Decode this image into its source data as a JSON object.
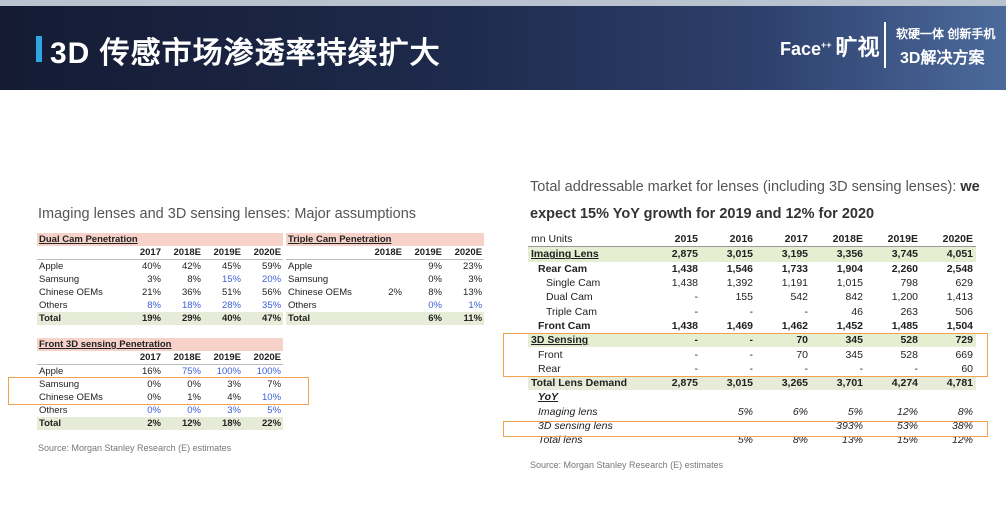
{
  "header": {
    "title": "3D 传感市场渗透率持续扩大",
    "brand_latin": "Face",
    "brand_sup": "++",
    "brand_cn": "旷视",
    "slogan_line1": "软硬一体 创新手机",
    "slogan_line2": "3D解决方案"
  },
  "left": {
    "heading": "Imaging lenses and 3D sensing lenses: Major assumptions",
    "dual_cam": {
      "title": "Dual Cam Penetration",
      "columns": [
        "2017",
        "2018E",
        "2019E",
        "2020E"
      ],
      "rows": [
        {
          "label": "Apple",
          "v": [
            "40%",
            "42%",
            "45%",
            "59%"
          ]
        },
        {
          "label": "Samsung",
          "v": [
            "3%",
            "8%",
            "15%",
            "20%"
          ]
        },
        {
          "label": "Chinese OEMs",
          "v": [
            "21%",
            "36%",
            "51%",
            "56%"
          ]
        },
        {
          "label": "Others",
          "v": [
            "8%",
            "18%",
            "28%",
            "35%"
          ]
        }
      ],
      "total": {
        "label": "Total",
        "v": [
          "19%",
          "29%",
          "40%",
          "47%"
        ]
      }
    },
    "triple_cam": {
      "title": "Triple Cam Penetration",
      "columns": [
        "2018E",
        "2019E",
        "2020E"
      ],
      "rows": [
        {
          "label": "Apple",
          "v": [
            "",
            "9%",
            "23%"
          ]
        },
        {
          "label": "Samsung",
          "v": [
            "",
            "0%",
            "3%"
          ]
        },
        {
          "label": "Chinese OEMs",
          "v": [
            "2%",
            "8%",
            "13%"
          ]
        },
        {
          "label": "Others",
          "v": [
            "",
            "0%",
            "1%"
          ]
        }
      ],
      "total": {
        "label": "Total",
        "v": [
          "",
          "6%",
          "11%"
        ]
      }
    },
    "front_3d": {
      "title": "Front 3D sensing Penetration",
      "columns": [
        "2017",
        "2018E",
        "2019E",
        "2020E"
      ],
      "rows": [
        {
          "label": "Apple",
          "v": [
            "16%",
            "75%",
            "100%",
            "100%"
          ]
        },
        {
          "label": "Samsung",
          "v": [
            "0%",
            "0%",
            "3%",
            "7%"
          ]
        },
        {
          "label": "Chinese OEMs",
          "v": [
            "0%",
            "1%",
            "4%",
            "10%"
          ]
        },
        {
          "label": "Others",
          "v": [
            "0%",
            "0%",
            "3%",
            "5%"
          ]
        }
      ],
      "total": {
        "label": "Total",
        "v": [
          "2%",
          "12%",
          "18%",
          "22%"
        ]
      }
    },
    "source": "Source: Morgan Stanley Research (E) estimates"
  },
  "right": {
    "heading_line1": "Total addressable market for lenses (including 3D sensing lenses):",
    "heading_line1_bold": "we",
    "heading_line2": "expect 15% YoY growth for 2019 and 12% for 2020",
    "units_label": "mn Units",
    "columns": [
      "2015",
      "2016",
      "2017",
      "2018E",
      "2019E",
      "2020E"
    ],
    "rows": [
      {
        "label": "Imaging Lens",
        "v": [
          "2,875",
          "3,015",
          "3,195",
          "3,356",
          "3,745",
          "4,051"
        ]
      },
      {
        "label": "Rear Cam",
        "v": [
          "1,438",
          "1,546",
          "1,733",
          "1,904",
          "2,260",
          "2,548"
        ]
      },
      {
        "label": "Single Cam",
        "v": [
          "1,438",
          "1,392",
          "1,191",
          "1,015",
          "798",
          "629"
        ]
      },
      {
        "label": "Dual Cam",
        "v": [
          "-",
          "155",
          "542",
          "842",
          "1,200",
          "1,413"
        ]
      },
      {
        "label": "Triple Cam",
        "v": [
          "-",
          "-",
          "-",
          "46",
          "263",
          "506"
        ]
      },
      {
        "label": "Front Cam",
        "v": [
          "1,438",
          "1,469",
          "1,462",
          "1,452",
          "1,485",
          "1,504"
        ]
      },
      {
        "label": "3D Sensing",
        "v": [
          "-",
          "-",
          "70",
          "345",
          "528",
          "729"
        ]
      },
      {
        "label": "Front",
        "v": [
          "-",
          "-",
          "70",
          "345",
          "528",
          "669"
        ]
      },
      {
        "label": "Rear",
        "v": [
          "-",
          "-",
          "-",
          "-",
          "-",
          "60"
        ]
      },
      {
        "label": "Total Lens Demand",
        "v": [
          "2,875",
          "3,015",
          "3,265",
          "3,701",
          "4,274",
          "4,781"
        ]
      },
      {
        "label": "YoY",
        "v": [
          "",
          "",
          "",
          "",
          "",
          ""
        ]
      },
      {
        "label": "Imaging lens",
        "v": [
          "",
          "5%",
          "6%",
          "5%",
          "12%",
          "8%"
        ]
      },
      {
        "label": "3D sensing lens",
        "v": [
          "",
          "",
          "",
          "393%",
          "53%",
          "38%"
        ]
      },
      {
        "label": "Total lens",
        "v": [
          "",
          "5%",
          "8%",
          "13%",
          "15%",
          "12%"
        ]
      }
    ],
    "source": "Source: Morgan Stanley Research (E) estimates"
  },
  "colors": {
    "banner_dark": "#141b33",
    "accent_bar": "#2ea7e0",
    "section_header_bg": "#f6d2c8",
    "total_row_bg": "#e7ecd8",
    "highlight_box": "#f0a24e",
    "blue_value": "#3d5fd9"
  }
}
